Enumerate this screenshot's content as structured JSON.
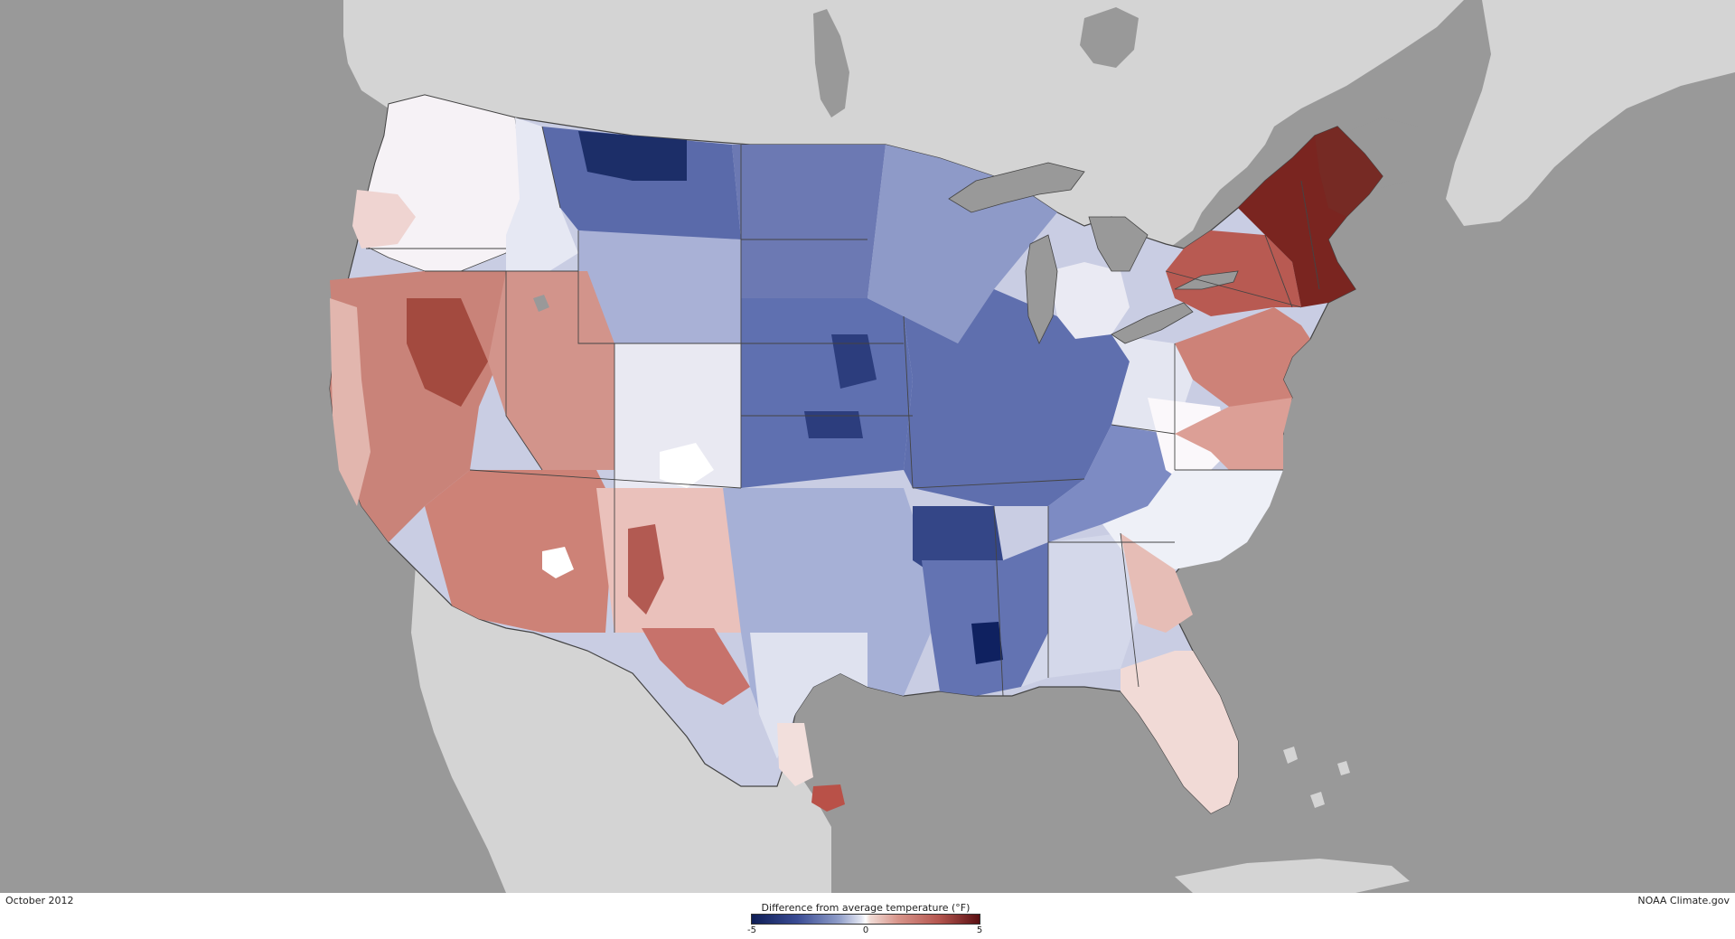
{
  "map": {
    "date": "October 2012",
    "credit": "NOAA Climate.gov",
    "legend": {
      "title": "Difference from average temperature (°F)",
      "min_label": "-5",
      "mid_label": "0",
      "max_label": "5",
      "range": [
        -5,
        5
      ],
      "colors": {
        "cold_extreme": "#0f1e56",
        "neutral": "#ffffff",
        "warm_extreme": "#5a0f12"
      }
    },
    "colors": {
      "ocean": "#999999",
      "land_outside": "#d4d4d4",
      "lakes": "#999999",
      "borders": "#444444"
    }
  }
}
